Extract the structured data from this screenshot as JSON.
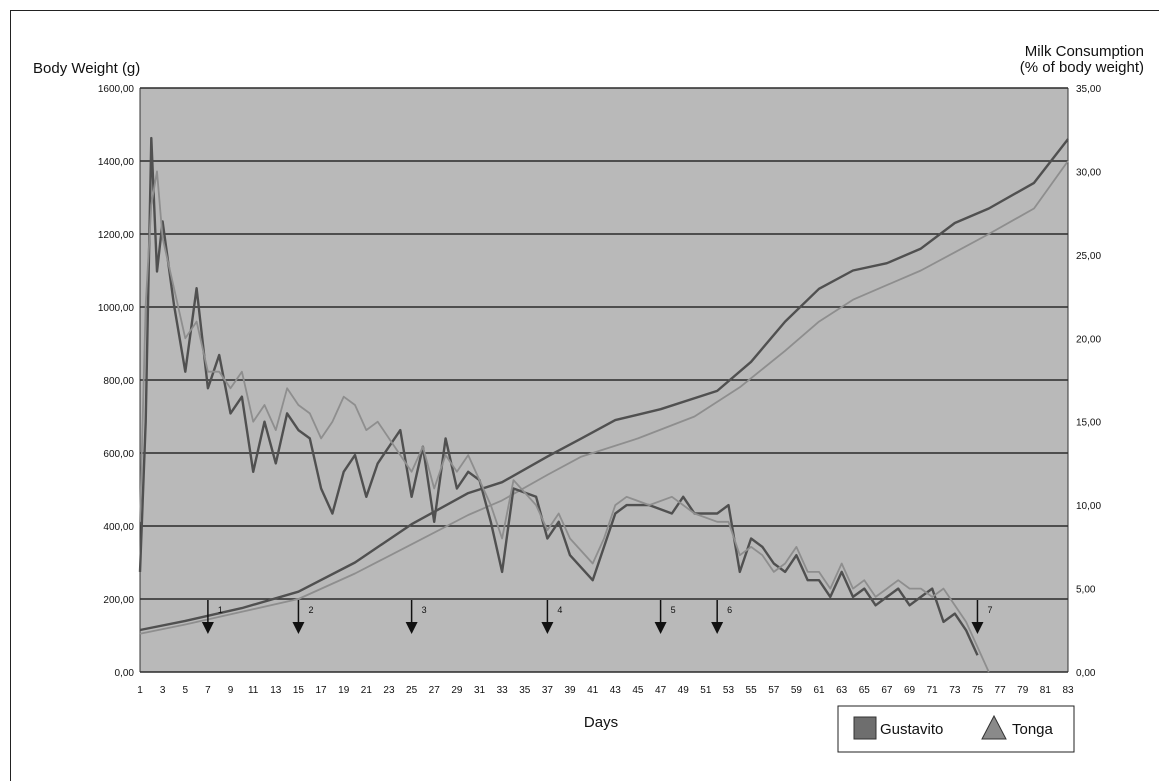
{
  "chart_data": {
    "type": "line",
    "y_left_label": "Body Weight (g)",
    "y_right_label_line1": "Milk Consumption",
    "y_right_label_line2": "(% of body weight)",
    "xlabel": "Days",
    "x_range": [
      1,
      83
    ],
    "y_left_range": [
      0,
      1600
    ],
    "y_right_range": [
      0,
      35
    ],
    "y_left_ticks": [
      "0,00",
      "200,00",
      "400,00",
      "600,00",
      "800,00",
      "1000,00",
      "1200,00",
      "1400,00",
      "1600,00"
    ],
    "y_right_ticks": [
      "0,00",
      "5,00",
      "10,00",
      "15,00",
      "20,00",
      "25,00",
      "30,00",
      "35,00"
    ],
    "x_ticks": [
      "1",
      "3",
      "5",
      "7",
      "9",
      "11",
      "13",
      "15",
      "17",
      "19",
      "21",
      "23",
      "25",
      "27",
      "29",
      "31",
      "33",
      "35",
      "37",
      "39",
      "41",
      "43",
      "45",
      "47",
      "49",
      "51",
      "53",
      "55",
      "57",
      "59",
      "61",
      "63",
      "65",
      "67",
      "69",
      "71",
      "73",
      "75",
      "77",
      "79",
      "81",
      "83"
    ],
    "grid": "horizontal",
    "legend_position": "bottom-right",
    "legend": [
      {
        "label": "Gustavito",
        "marker": "square",
        "color": "#6e6e6e"
      },
      {
        "label": "Tonga",
        "marker": "triangle",
        "color": "#8a8a8a"
      }
    ],
    "colors": {
      "plot_bg": "#b9b9b9",
      "gustavito": "#505050",
      "tonga": "#8e8e8e",
      "grid": "#2a2a2a"
    },
    "events": [
      {
        "label": "1",
        "day": 7
      },
      {
        "label": "2",
        "day": 15
      },
      {
        "label": "3",
        "day": 25
      },
      {
        "label": "4",
        "day": 37
      },
      {
        "label": "5",
        "day": 47
      },
      {
        "label": "6",
        "day": 52
      },
      {
        "label": "7",
        "day": 75
      }
    ],
    "series": [
      {
        "name": "Gustavito",
        "metric": "body_weight",
        "axis": "left",
        "points": [
          [
            1,
            115
          ],
          [
            5,
            140
          ],
          [
            10,
            175
          ],
          [
            15,
            220
          ],
          [
            20,
            300
          ],
          [
            25,
            405
          ],
          [
            30,
            490
          ],
          [
            33,
            520
          ],
          [
            37,
            590
          ],
          [
            40,
            640
          ],
          [
            43,
            690
          ],
          [
            47,
            720
          ],
          [
            52,
            770
          ],
          [
            55,
            850
          ],
          [
            58,
            960
          ],
          [
            61,
            1050
          ],
          [
            64,
            1100
          ],
          [
            67,
            1120
          ],
          [
            70,
            1160
          ],
          [
            73,
            1230
          ],
          [
            76,
            1270
          ],
          [
            80,
            1340
          ],
          [
            83,
            1460
          ]
        ]
      },
      {
        "name": "Tonga",
        "metric": "body_weight",
        "axis": "left",
        "points": [
          [
            1,
            105
          ],
          [
            5,
            130
          ],
          [
            10,
            165
          ],
          [
            15,
            200
          ],
          [
            20,
            270
          ],
          [
            25,
            350
          ],
          [
            30,
            430
          ],
          [
            33,
            470
          ],
          [
            37,
            540
          ],
          [
            40,
            590
          ],
          [
            45,
            640
          ],
          [
            50,
            700
          ],
          [
            54,
            780
          ],
          [
            58,
            880
          ],
          [
            61,
            960
          ],
          [
            64,
            1020
          ],
          [
            67,
            1060
          ],
          [
            70,
            1100
          ],
          [
            73,
            1150
          ],
          [
            76,
            1200
          ],
          [
            80,
            1270
          ],
          [
            83,
            1400
          ]
        ]
      },
      {
        "name": "Gustavito",
        "metric": "milk_consumption",
        "axis": "right",
        "points": [
          [
            1,
            6
          ],
          [
            1.5,
            15
          ],
          [
            2,
            32
          ],
          [
            2.5,
            24
          ],
          [
            3,
            27
          ],
          [
            4,
            22
          ],
          [
            5,
            18
          ],
          [
            6,
            23
          ],
          [
            7,
            17
          ],
          [
            8,
            19
          ],
          [
            9,
            15.5
          ],
          [
            10,
            16.5
          ],
          [
            11,
            12
          ],
          [
            12,
            15
          ],
          [
            13,
            12.5
          ],
          [
            14,
            15.5
          ],
          [
            15,
            14.5
          ],
          [
            16,
            14
          ],
          [
            17,
            11
          ],
          [
            18,
            9.5
          ],
          [
            19,
            12
          ],
          [
            20,
            13
          ],
          [
            21,
            10.5
          ],
          [
            22,
            12.5
          ],
          [
            24,
            14.5
          ],
          [
            25,
            10.5
          ],
          [
            26,
            13.5
          ],
          [
            27,
            9
          ],
          [
            28,
            14
          ],
          [
            29,
            11
          ],
          [
            30,
            12
          ],
          [
            31,
            11.5
          ],
          [
            32,
            9
          ],
          [
            33,
            6
          ],
          [
            34,
            11
          ],
          [
            36,
            10.5
          ],
          [
            37,
            8
          ],
          [
            38,
            9
          ],
          [
            39,
            7
          ],
          [
            41,
            5.5
          ],
          [
            42,
            7.5
          ],
          [
            43,
            9.5
          ],
          [
            44,
            10
          ],
          [
            46,
            10
          ],
          [
            48,
            9.5
          ],
          [
            49,
            10.5
          ],
          [
            50,
            9.5
          ],
          [
            52,
            9.5
          ],
          [
            53,
            10
          ],
          [
            54,
            6
          ],
          [
            55,
            8
          ],
          [
            56,
            7.5
          ],
          [
            57,
            6.5
          ],
          [
            58,
            6
          ],
          [
            59,
            7
          ],
          [
            60,
            5.5
          ],
          [
            61,
            5.5
          ],
          [
            62,
            4.5
          ],
          [
            63,
            6
          ],
          [
            64,
            4.5
          ],
          [
            65,
            5
          ],
          [
            66,
            4
          ],
          [
            67,
            4.5
          ],
          [
            68,
            5
          ],
          [
            69,
            4
          ],
          [
            70,
            4.5
          ],
          [
            71,
            5
          ],
          [
            72,
            3
          ],
          [
            73,
            3.5
          ],
          [
            74,
            2.5
          ],
          [
            75,
            1
          ]
        ]
      },
      {
        "name": "Tonga",
        "metric": "milk_consumption",
        "axis": "right",
        "points": [
          [
            1,
            9
          ],
          [
            1.5,
            22
          ],
          [
            2,
            28
          ],
          [
            2.5,
            30
          ],
          [
            3,
            26
          ],
          [
            4,
            23
          ],
          [
            5,
            20
          ],
          [
            6,
            21
          ],
          [
            7,
            18
          ],
          [
            8,
            18
          ],
          [
            9,
            17
          ],
          [
            10,
            18
          ],
          [
            11,
            15
          ],
          [
            12,
            16
          ],
          [
            13,
            14.5
          ],
          [
            14,
            17
          ],
          [
            15,
            16
          ],
          [
            16,
            15.5
          ],
          [
            17,
            14
          ],
          [
            18,
            15
          ],
          [
            19,
            16.5
          ],
          [
            20,
            16
          ],
          [
            21,
            14.5
          ],
          [
            22,
            15
          ],
          [
            24,
            13
          ],
          [
            25,
            12
          ],
          [
            26,
            13.5
          ],
          [
            27,
            11
          ],
          [
            28,
            13
          ],
          [
            29,
            12
          ],
          [
            30,
            13
          ],
          [
            31,
            11.5
          ],
          [
            32,
            10
          ],
          [
            33,
            8
          ],
          [
            34,
            11.5
          ],
          [
            36,
            10
          ],
          [
            37,
            8.5
          ],
          [
            38,
            9.5
          ],
          [
            39,
            8
          ],
          [
            41,
            6.5
          ],
          [
            42,
            8
          ],
          [
            43,
            10
          ],
          [
            44,
            10.5
          ],
          [
            46,
            10
          ],
          [
            48,
            10.5
          ],
          [
            49,
            10
          ],
          [
            50,
            9.5
          ],
          [
            52,
            9
          ],
          [
            53,
            9
          ],
          [
            54,
            7
          ],
          [
            55,
            7.5
          ],
          [
            56,
            7
          ],
          [
            57,
            6
          ],
          [
            58,
            6.5
          ],
          [
            59,
            7.5
          ],
          [
            60,
            6
          ],
          [
            61,
            6
          ],
          [
            62,
            5
          ],
          [
            63,
            6.5
          ],
          [
            64,
            5
          ],
          [
            65,
            5.5
          ],
          [
            66,
            4.5
          ],
          [
            67,
            5
          ],
          [
            68,
            5.5
          ],
          [
            69,
            5
          ],
          [
            70,
            5
          ],
          [
            71,
            4.5
          ],
          [
            72,
            5
          ],
          [
            73,
            4
          ],
          [
            74,
            3
          ],
          [
            75,
            1.5
          ],
          [
            76,
            0
          ]
        ]
      }
    ]
  }
}
